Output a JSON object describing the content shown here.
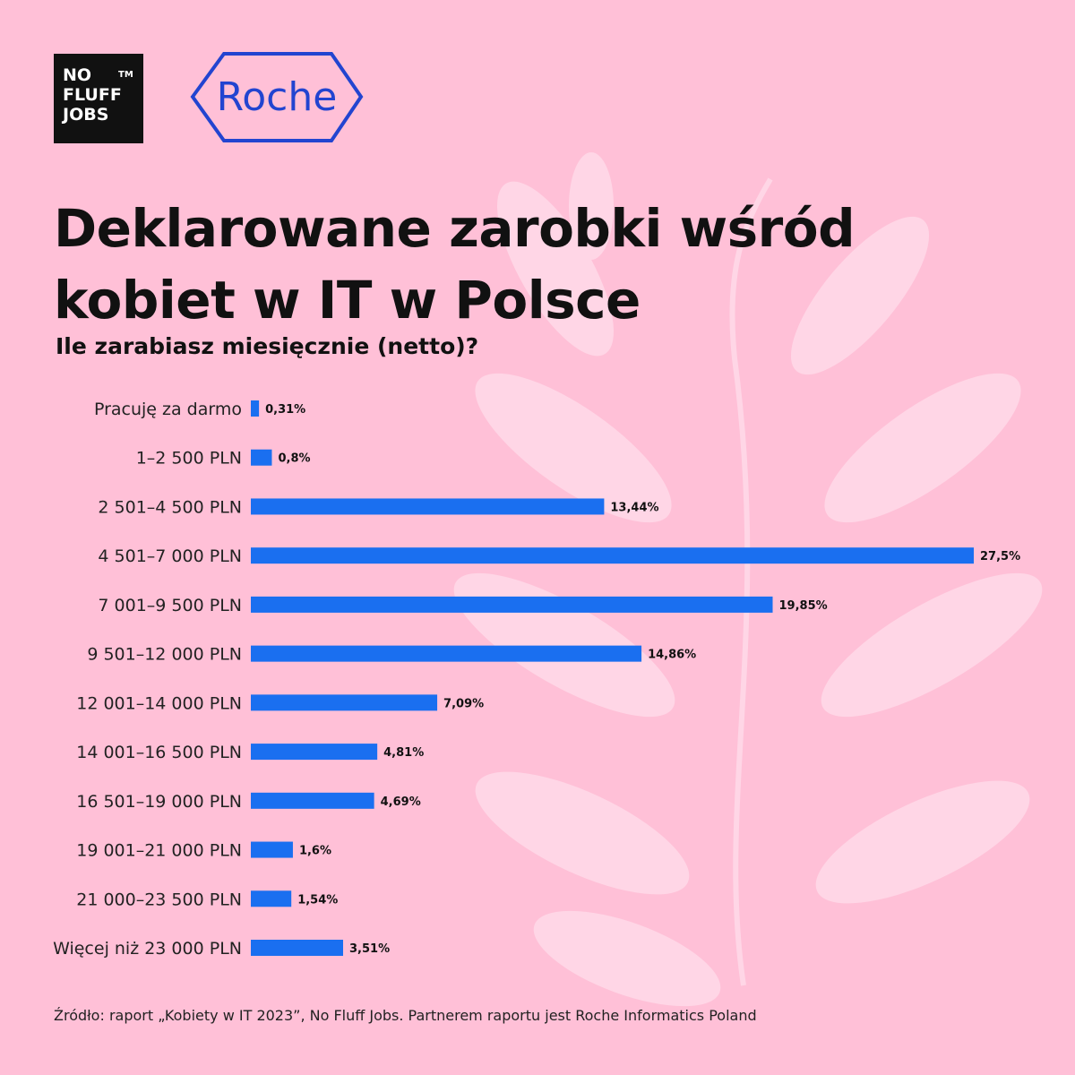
{
  "logos": {
    "nofluff_lines": [
      "NO",
      "FLUFF",
      "JOBS"
    ],
    "trademark": "TM",
    "roche": "Roche"
  },
  "chart_data": {
    "type": "bar",
    "orientation": "horizontal",
    "title": "Deklarowane zarobki wśród kobiet w IT w Polsce",
    "subtitle": "Ile zarabiasz miesięcznie (netto)?",
    "categories": [
      "Pracuję za darmo",
      "1–2 500 PLN",
      "2 501–4 500 PLN",
      "4 501–7 000 PLN",
      "7 001–9 500 PLN",
      "9 501–12 000 PLN",
      "12 001–14 000 PLN",
      "14 001–16 500 PLN",
      "16 501–19 000 PLN",
      "19 001–21 000 PLN",
      "21 000–23 500 PLN",
      "Więcej niż 23 000 PLN"
    ],
    "values": [
      0.31,
      0.8,
      13.44,
      27.5,
      19.85,
      14.86,
      7.09,
      4.81,
      4.69,
      1.6,
      1.54,
      3.51
    ],
    "value_labels": [
      "0,31%",
      "0,8%",
      "13,44%",
      "27,5%",
      "19,85%",
      "14,86%",
      "7,09%",
      "4,81%",
      "4,69%",
      "1,6%",
      "1,54%",
      "3,51%"
    ],
    "color": "#1a6ff0",
    "source": "Źródło: raport „Kobiety w IT 2023”, No Fluff Jobs. Partnerem raportu jest Roche Informatics Poland"
  }
}
